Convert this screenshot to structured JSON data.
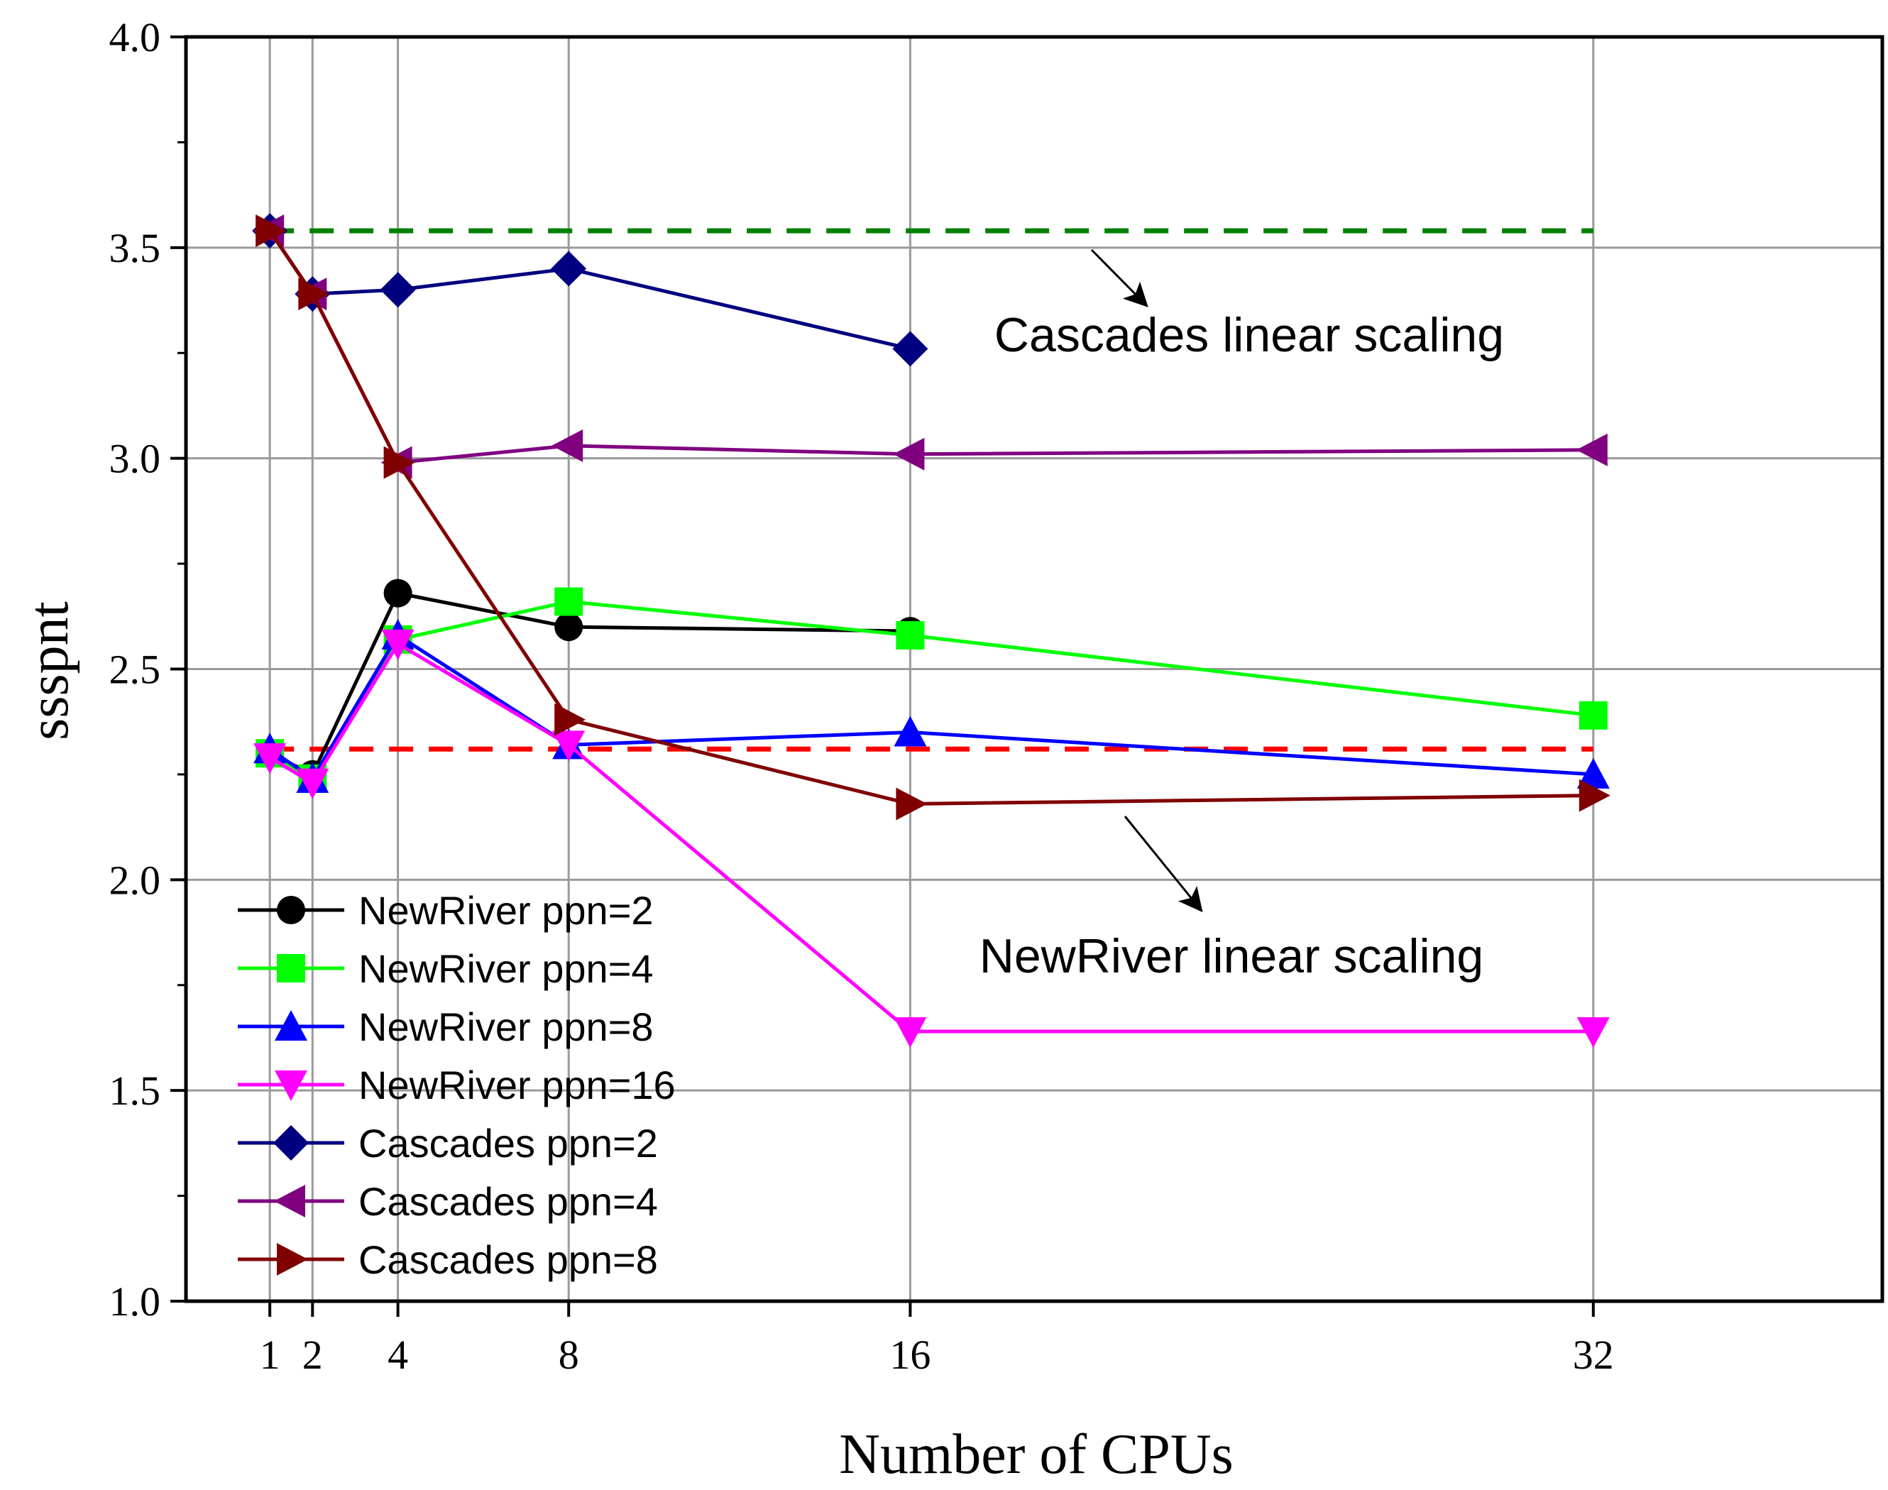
{
  "chart_data": {
    "type": "line",
    "xlabel": "Number of CPUs",
    "ylabel": "ssspnt",
    "xlim": [
      0,
      38
    ],
    "ylim": [
      1.0,
      4.0
    ],
    "x_ticks": [
      1,
      2,
      4,
      8,
      16,
      32
    ],
    "x_tick_labels": [
      "1",
      "2",
      "4",
      "8",
      "16",
      "32"
    ],
    "y_ticks": [
      1.0,
      1.5,
      2.0,
      2.5,
      3.0,
      3.5,
      4.0
    ],
    "y_tick_labels": [
      "1.0",
      "1.5",
      "2.0",
      "2.5",
      "3.0",
      "3.5",
      "4.0"
    ],
    "grid": true,
    "legend_position": "bottom-left",
    "series": [
      {
        "name": "NewRiver ppn=2",
        "color": "#000000",
        "marker": "circle",
        "x": [
          1,
          2,
          4,
          8,
          16
        ],
        "y": [
          2.3,
          2.25,
          2.68,
          2.6,
          2.59
        ]
      },
      {
        "name": "NewRiver ppn=4",
        "color": "#00ff00",
        "marker": "square",
        "x": [
          1,
          2,
          4,
          8,
          16,
          32
        ],
        "y": [
          2.3,
          2.24,
          2.57,
          2.66,
          2.58,
          2.39
        ]
      },
      {
        "name": "NewRiver ppn=8",
        "color": "#0000ff",
        "marker": "triangle-up",
        "x": [
          1,
          2,
          4,
          8,
          16,
          32
        ],
        "y": [
          2.31,
          2.24,
          2.58,
          2.32,
          2.35,
          2.25
        ]
      },
      {
        "name": "NewRiver ppn=16",
        "color": "#ff00ff",
        "marker": "triangle-down",
        "x": [
          1,
          2,
          4,
          8,
          16,
          32
        ],
        "y": [
          2.29,
          2.23,
          2.56,
          2.32,
          1.64,
          1.64
        ]
      },
      {
        "name": "Cascades ppn=2",
        "color": "#000080",
        "marker": "diamond",
        "x": [
          1,
          2,
          4,
          8,
          16
        ],
        "y": [
          3.54,
          3.39,
          3.4,
          3.45,
          3.26
        ]
      },
      {
        "name": "Cascades ppn=4",
        "color": "#800080",
        "marker": "triangle-left",
        "x": [
          1,
          2,
          4,
          8,
          16,
          32
        ],
        "y": [
          3.54,
          3.39,
          2.99,
          3.03,
          3.01,
          3.02
        ]
      },
      {
        "name": "Cascades ppn=8",
        "color": "#800000",
        "marker": "triangle-right",
        "x": [
          1,
          2,
          4,
          8,
          16,
          32
        ],
        "y": [
          3.54,
          3.39,
          2.99,
          2.38,
          2.18,
          2.2
        ]
      }
    ],
    "reference_lines": [
      {
        "name": "Cascades linear scaling",
        "color": "#008000",
        "x": [
          1,
          32
        ],
        "y": 3.54
      },
      {
        "name": "NewRiver linear scaling",
        "color": "#ff0000",
        "x": [
          1,
          32
        ],
        "y": 2.31
      }
    ],
    "annotations": [
      {
        "text": "Cascades linear scaling",
        "points_to": "Cascades linear scaling"
      },
      {
        "text": "NewRiver linear scaling",
        "points_to": "NewRiver linear scaling"
      }
    ]
  }
}
